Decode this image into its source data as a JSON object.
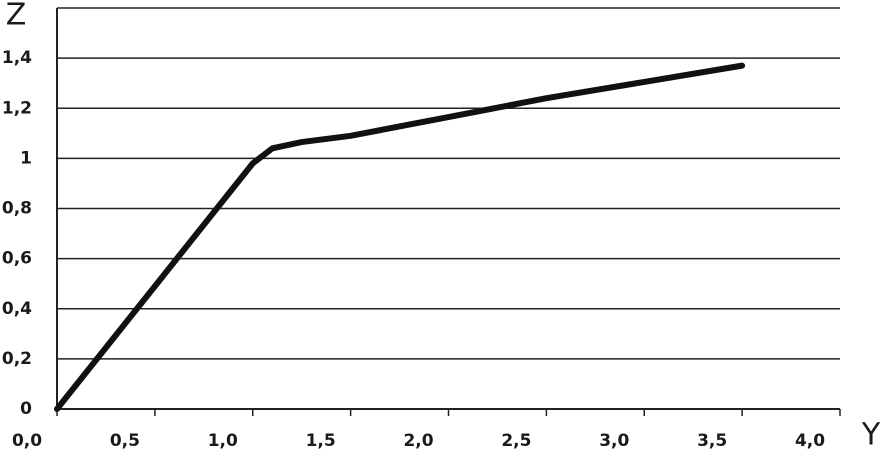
{
  "chart_data": {
    "type": "line",
    "x_label": "Y",
    "y_label": "Z",
    "x": [
      0,
      0.5,
      1.0,
      1.1,
      1.25,
      1.5,
      2.0,
      2.5,
      3.0,
      3.5
    ],
    "series": [
      {
        "color": "#111111",
        "values": [
          0,
          0.49,
          0.98,
          1.04,
          1.065,
          1.09,
          1.165,
          1.24,
          1.305,
          1.37
        ]
      }
    ],
    "xlim": [
      0,
      4
    ],
    "ylim": [
      0,
      1.6
    ],
    "xticks": [
      {
        "value": 0,
        "label": "0,0"
      },
      {
        "value": 0.5,
        "label": "0,5"
      },
      {
        "value": 1,
        "label": "1,0"
      },
      {
        "value": 1.5,
        "label": "1,5"
      },
      {
        "value": 2,
        "label": "2,0"
      },
      {
        "value": 2.5,
        "label": "2,5"
      },
      {
        "value": 3,
        "label": "3,0"
      },
      {
        "value": 3.5,
        "label": "3,5"
      },
      {
        "value": 4,
        "label": "4,0"
      }
    ],
    "yticks": [
      0,
      {
        "value": 0.2,
        "label": "0,2"
      },
      {
        "value": 0.4,
        "label": "0,4"
      },
      {
        "value": 0.6,
        "label": "0,6"
      },
      {
        "value": 0.8,
        "label": "0,8"
      },
      1,
      {
        "value": 1.2,
        "label": "1,2"
      },
      {
        "value": 1.4,
        "label": "1,4"
      }
    ],
    "grid": true
  }
}
